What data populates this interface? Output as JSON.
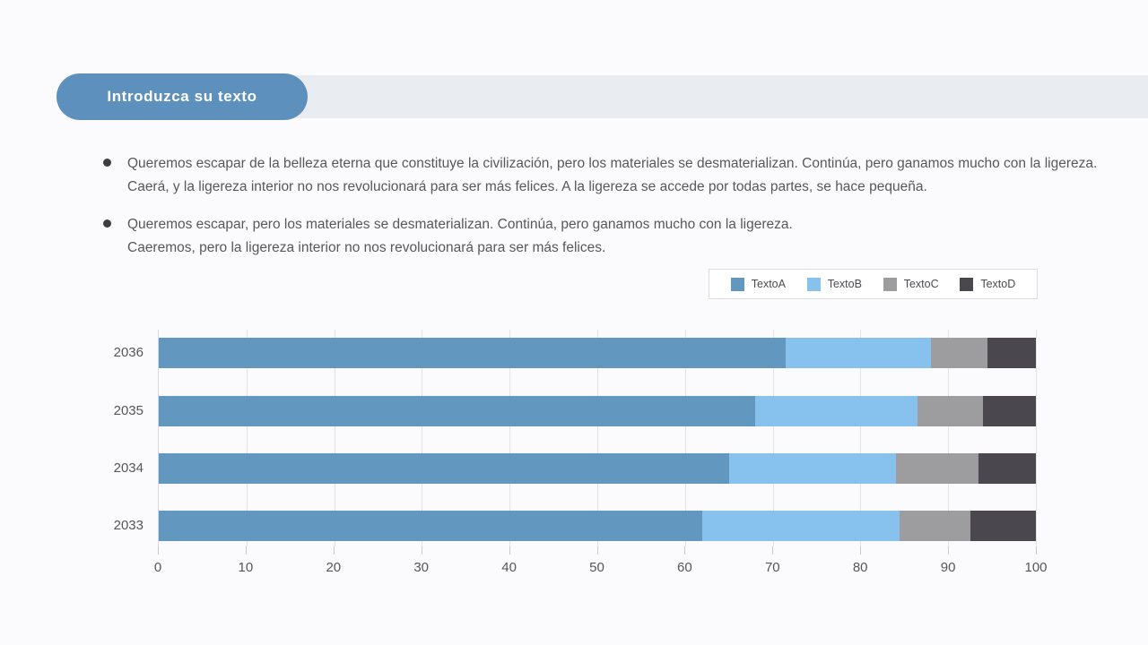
{
  "title": {
    "label": "Introduzca su texto"
  },
  "bullets": [
    {
      "text": "Queremos escapar de la belleza eterna que constituye la civilización, pero los materiales se desmaterializan. Continúa, pero ganamos mucho con la ligereza.\nCaerá, y la ligereza interior no nos revolucionará para ser más felices. A la ligereza se accede por todas partes, se hace pequeña."
    },
    {
      "text": "Queremos escapar, pero los materiales se desmaterializan. Continúa, pero ganamos mucho con la ligereza.\nCaeremos, pero la ligereza interior no nos revolucionará para ser más felices."
    }
  ],
  "chart_data": {
    "type": "bar",
    "orientation": "horizontal",
    "stacked": true,
    "title": "",
    "xlabel": "",
    "ylabel": "",
    "categories": [
      "2036",
      "2035",
      "2034",
      "2033"
    ],
    "series": [
      {
        "name": "TextoA",
        "color": "#6297bf",
        "values": [
          71.5,
          68,
          65,
          62
        ]
      },
      {
        "name": "TextoB",
        "color": "#87c1ed",
        "values": [
          16.5,
          18.5,
          19,
          22.5
        ]
      },
      {
        "name": "TextoC",
        "color": "#9d9d9f",
        "values": [
          6.5,
          7.5,
          9.5,
          8
        ]
      },
      {
        "name": "TextoD",
        "color": "#4a474e",
        "values": [
          5.5,
          6,
          6.5,
          7.5
        ]
      }
    ],
    "xlim": [
      0,
      100
    ],
    "x_ticks": [
      0,
      10,
      20,
      30,
      40,
      50,
      60,
      70,
      80,
      90,
      100
    ],
    "grid": true,
    "legend_position": "top-right"
  },
  "colors": {
    "page_background": "#fbfbfd",
    "header_band": "#e9edf1",
    "title_pill": "#5e90bd",
    "title_text": "#ffffff",
    "body_text": "#57585c",
    "gridline": "#e4e4e8",
    "tick_text": "#55565a"
  }
}
